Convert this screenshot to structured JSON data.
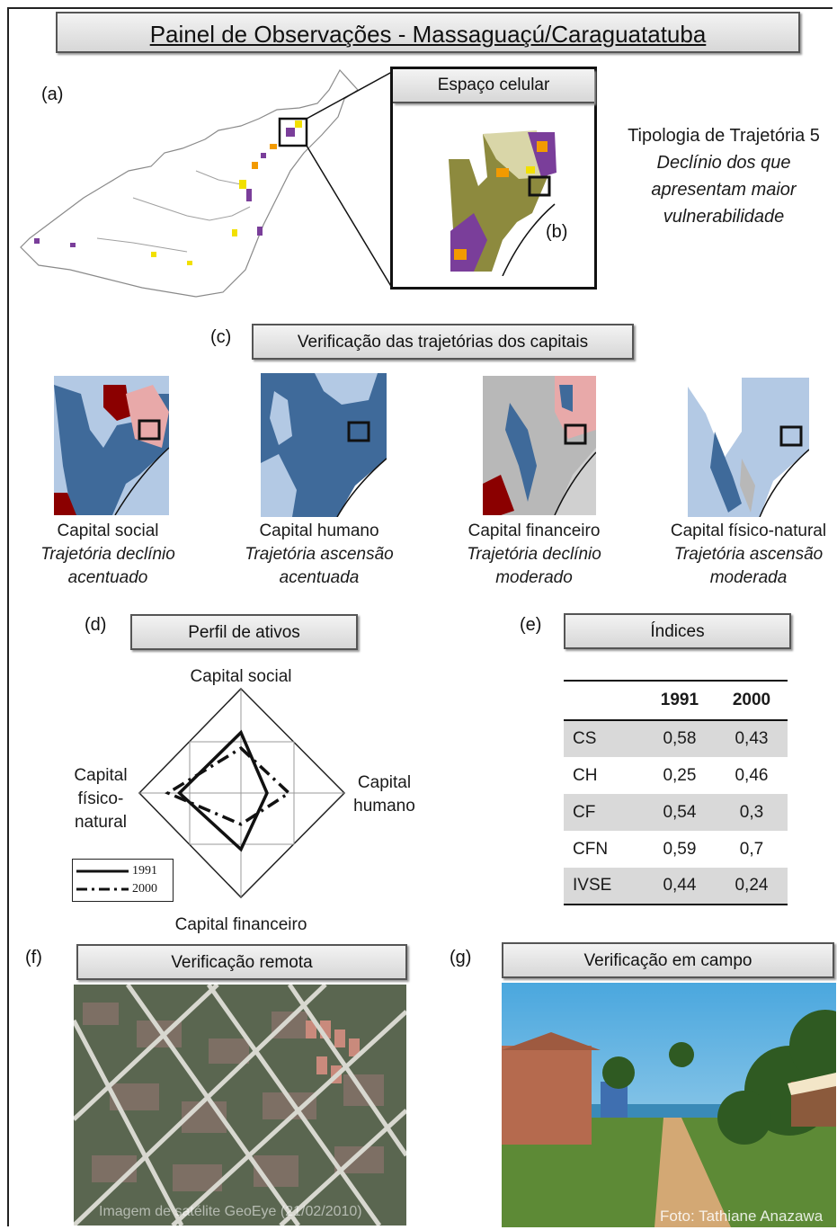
{
  "title": "Painel de Observações -  Massaguaçú/Caraguatatuba",
  "panels": {
    "a": "(a)",
    "b": "(b)",
    "c": "(c)",
    "d": "(d)",
    "e": "(e)",
    "f": "(f)",
    "g": "(g)"
  },
  "cell_space": {
    "header": "Espaço celular"
  },
  "typology": {
    "title": "Tipologia de Trajetória 5",
    "line1": "Declínio dos que",
    "line2": "apresentam maior",
    "line3": "vulnerabilidade"
  },
  "verification_header": "Verificação das trajetórias dos capitais",
  "capitals": [
    {
      "name": "Capital social",
      "line1": "Trajetória declínio",
      "line2": "acentuado"
    },
    {
      "name": "Capital humano",
      "line1": "Trajetória ascensão",
      "line2": "acentuada"
    },
    {
      "name": "Capital financeiro",
      "line1": "Trajetória declínio",
      "line2": "moderado"
    },
    {
      "name": "Capital físico-natural",
      "line1": "Trajetória ascensão",
      "line2": "moderada"
    }
  ],
  "asset_profile": {
    "header": "Perfil de ativos",
    "axis_top": "Capital social",
    "axis_right_1": "Capital",
    "axis_right_2": "humano",
    "axis_bottom": "Capital financeiro",
    "axis_left_1": "Capital",
    "axis_left_2": "físico-",
    "axis_left_3": "natural",
    "legend_1991": "1991",
    "legend_2000": "2000"
  },
  "chart_data": {
    "type": "radar",
    "categories": [
      "CS",
      "CH",
      "CF",
      "CFN"
    ],
    "range": [
      0,
      1
    ],
    "series": [
      {
        "name": "1991",
        "values": [
          0.58,
          0.25,
          0.54,
          0.59
        ],
        "style": "solid"
      },
      {
        "name": "2000",
        "values": [
          0.43,
          0.46,
          0.3,
          0.7
        ],
        "style": "dash-dot"
      }
    ]
  },
  "indices": {
    "header": "Índices",
    "col1": "1991",
    "col2": "2000",
    "rows": [
      {
        "label": "CS",
        "v1991": "0,58",
        "v2000": "0,43"
      },
      {
        "label": "CH",
        "v1991": "0,25",
        "v2000": "0,46"
      },
      {
        "label": "CF",
        "v1991": "0,54",
        "v2000": "0,3"
      },
      {
        "label": "CFN",
        "v1991": "0,59",
        "v2000": "0,7"
      },
      {
        "label": "IVSE",
        "v1991": "0,44",
        "v2000": "0,24"
      }
    ]
  },
  "remote": {
    "header": "Verificação remota",
    "credit": "Imagem de satélite GeoEye (21/02/2010)"
  },
  "field": {
    "header": "Verificação em campo",
    "credit": "Foto: Tathiane Anazawa"
  }
}
